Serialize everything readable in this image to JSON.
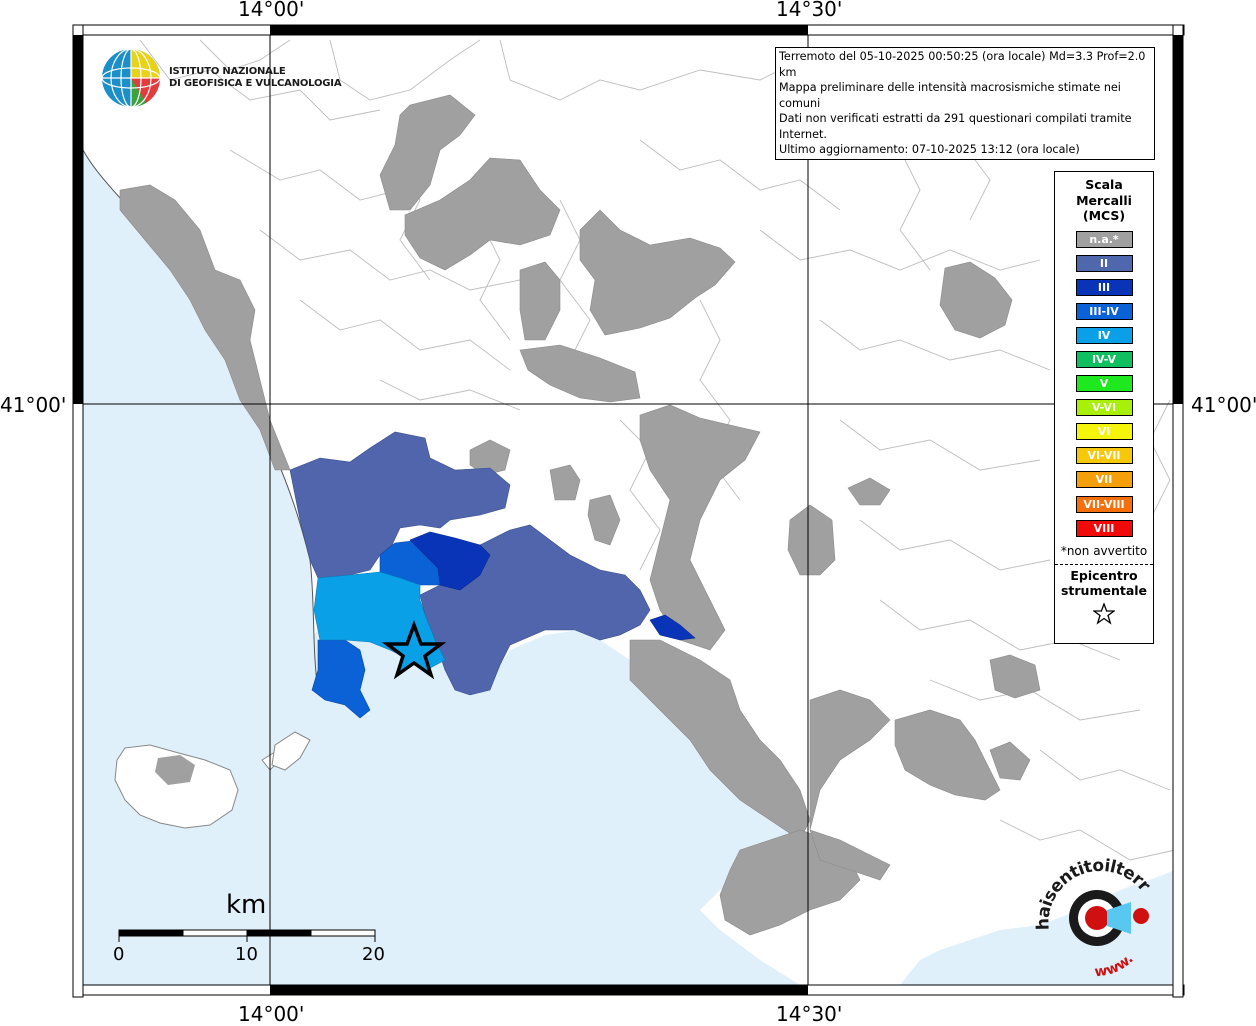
{
  "coords": {
    "top_left": "14°00'",
    "top_right": "14°30'",
    "bottom_left": "14°00'",
    "bottom_right": "14°30'",
    "left_lat": "41°00'",
    "right_lat": "41°00'"
  },
  "logo": {
    "line1": "ISTITUTO NAZIONALE",
    "line2": "DI GEOFISICA E VULCANOLOGIA"
  },
  "info": {
    "line1": "Terremoto del 05-10-2025 00:50:25 (ora locale) Md=3.3 Prof=2.0 km",
    "line2": "Mappa preliminare delle intensità macrosismiche stimate nei comuni",
    "line3": "Dati non verificati estratti da 291 questionari compilati tramite Internet.",
    "line4": "Ultimo aggiornamento: 07-10-2025 13:12 (ora locale)"
  },
  "legend": {
    "title1": "Scala",
    "title2": "Mercalli",
    "title3": "(MCS)",
    "items": [
      {
        "label": "n.a.*",
        "color": "#a0a0a0"
      },
      {
        "label": "II",
        "color": "#4f67ad"
      },
      {
        "label": "III",
        "color": "#0a34b8"
      },
      {
        "label": "III-IV",
        "color": "#0a62d6"
      },
      {
        "label": "IV",
        "color": "#0aa0e8"
      },
      {
        "label": "IV-V",
        "color": "#10c060"
      },
      {
        "label": "V",
        "color": "#1ee81e"
      },
      {
        "label": "V-VI",
        "color": "#a8f00a"
      },
      {
        "label": "VI",
        "color": "#f5f50a"
      },
      {
        "label": "VI-VII",
        "color": "#f5c80a"
      },
      {
        "label": "VII",
        "color": "#f5a00a"
      },
      {
        "label": "VII-VIII",
        "color": "#f5700a"
      },
      {
        "label": "VIII",
        "color": "#f00a0a"
      }
    ],
    "footnote": "*non avvertito",
    "epicenter1": "Epicentro",
    "epicenter2": "strumentale"
  },
  "scale": {
    "unit": "km",
    "t0": "0",
    "t1": "10",
    "t2": "20"
  },
  "badge": {
    "text_top": "haisentitoilterremoto.it",
    "text_bottom": "www."
  },
  "colors": {
    "sea": "#dff0fb",
    "land": "#ffffff",
    "na": "#a0a0a0",
    "ii": "#5065ab",
    "iii": "#0a34b8",
    "iiiiv": "#0a62d6",
    "iv": "#0aa0e8"
  }
}
